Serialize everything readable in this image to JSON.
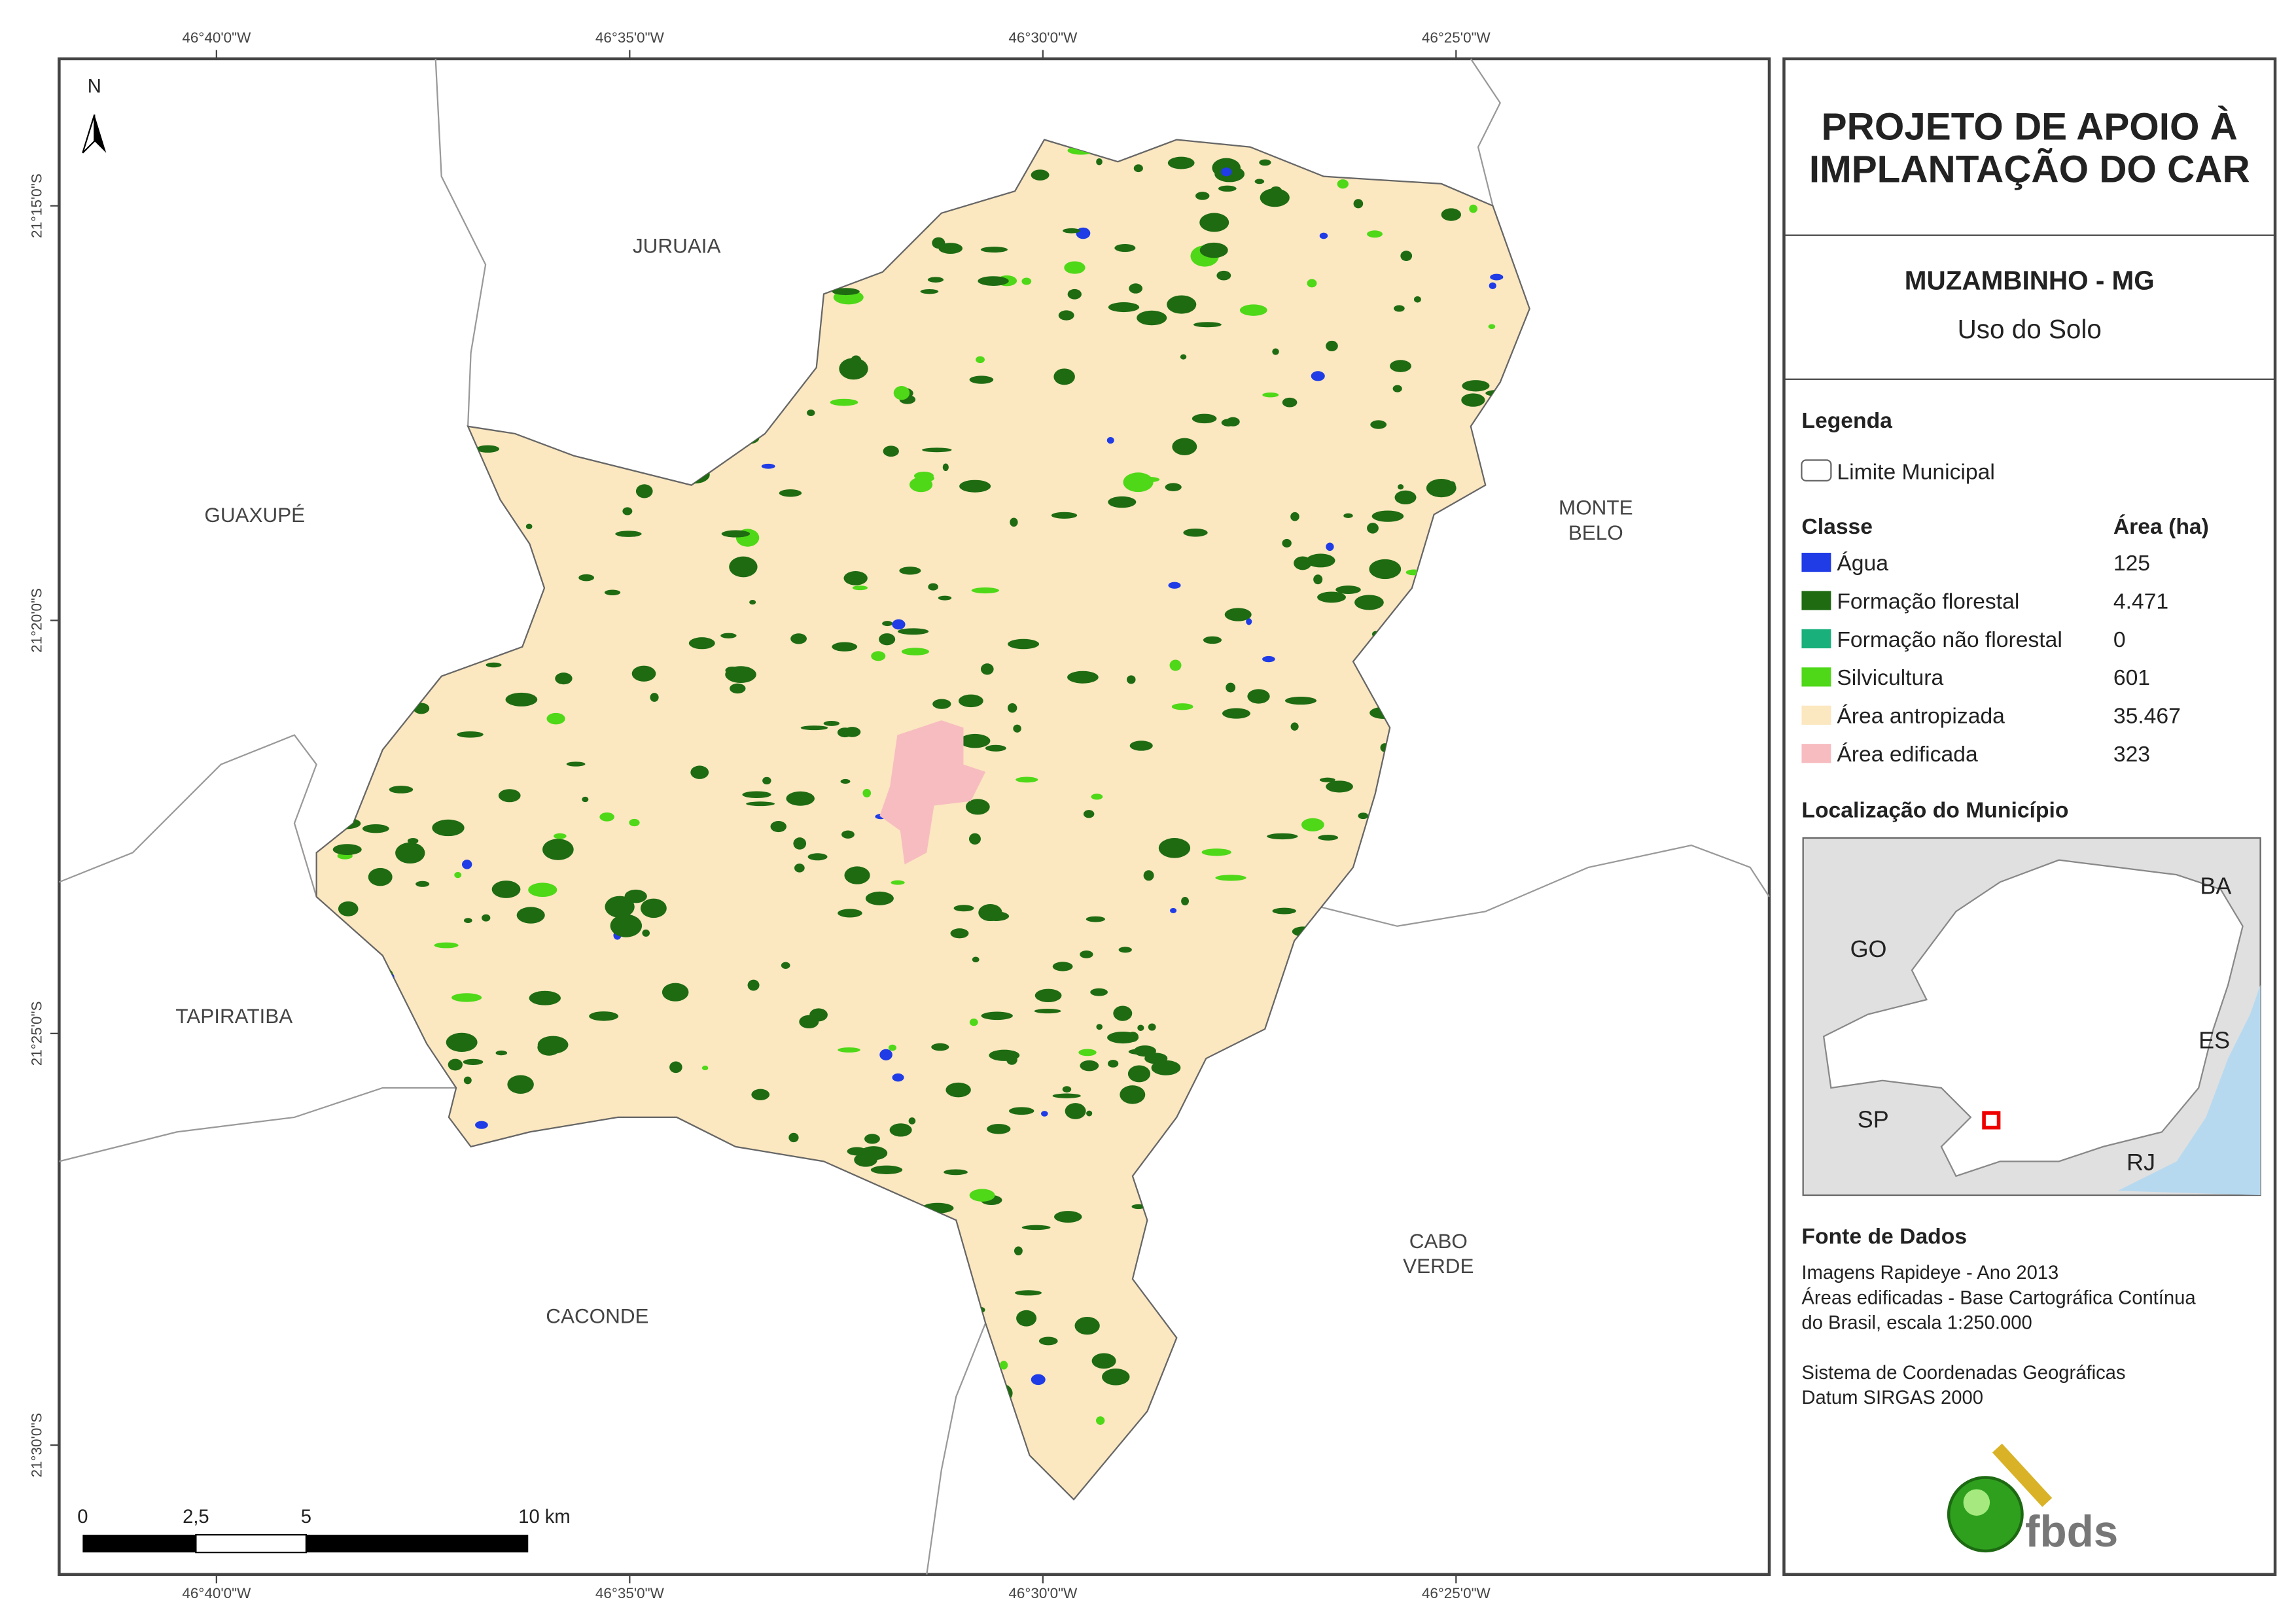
{
  "header": {
    "title": [
      "PROJETO DE APOIO À",
      "IMPLANTAÇÃO DO CAR"
    ],
    "municipality": "MUZAMBINHO - MG",
    "subtitle": "Uso do Solo"
  },
  "legend": {
    "title": "Legenda",
    "boundary": "Limite Municipal",
    "class_header": "Classe",
    "area_header": "Área (ha)",
    "classes": [
      {
        "name": "Água",
        "area": "125",
        "color": "#1f3ce6"
      },
      {
        "name": "Formação florestal",
        "area": "4.471",
        "color": "#1e6b12"
      },
      {
        "name": "Formação não florestal",
        "area": "0",
        "color": "#19b07c"
      },
      {
        "name": "Silvicultura",
        "area": "601",
        "color": "#4ed818"
      },
      {
        "name": "Área antropizada",
        "area": "35.467",
        "color": "#fbe7c0"
      },
      {
        "name": "Área edificada",
        "area": "323",
        "color": "#f7bcc0"
      }
    ]
  },
  "location": {
    "title": "Localização do Município",
    "labels": [
      "BA",
      "GO",
      "ES",
      "SP",
      "RJ"
    ]
  },
  "sources": {
    "title": "Fonte de Dados",
    "lines": [
      "Imagens Rapideye - Ano 2013",
      "Áreas edificadas - Base Cartográfica Contínua",
      "do Brasil, escala 1:250.000",
      "Sistema de Coordenadas Geográficas",
      "Datum SIRGAS 2000"
    ]
  },
  "map": {
    "north": "N",
    "lon_labels": [
      "46°40'0\"W",
      "46°35'0\"W",
      "46°30'0\"W",
      "46°25'0\"W"
    ],
    "lat_labels": [
      "21°15'0\"S",
      "21°20'0\"S",
      "21°25'0\"S",
      "21°30'0\"S"
    ],
    "neighbors": [
      {
        "lines": [
          "JURUAIA"
        ]
      },
      {
        "lines": [
          "GUAXUPÉ"
        ]
      },
      {
        "lines": [
          "MONTE",
          "BELO"
        ]
      },
      {
        "lines": [
          "TAPIRATIBA"
        ]
      },
      {
        "lines": [
          "CACONDE"
        ]
      },
      {
        "lines": [
          "CABO",
          "VERDE"
        ]
      }
    ],
    "scale_labels": [
      "0",
      "2,5",
      "5",
      "10 km"
    ]
  },
  "logo": "fbds"
}
